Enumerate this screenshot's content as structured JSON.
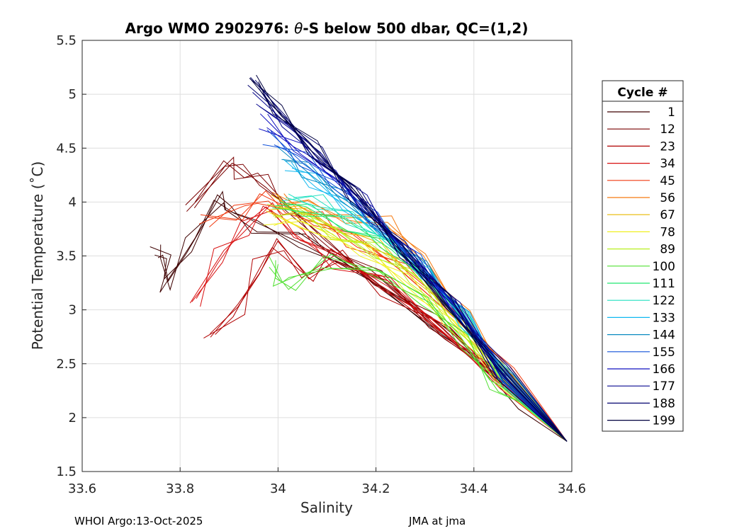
{
  "chart_data": {
    "type": "line",
    "title": {
      "prefix": "Argo WMO 2902976: ",
      "theta": "θ",
      "suffix": "-S below 500 dbar,  QC=(1,2)"
    },
    "xlabel": "Salinity",
    "ylabel": "Potential Temperature (˚C)",
    "xlim": [
      33.6,
      34.6
    ],
    "ylim": [
      1.5,
      5.5
    ],
    "xticks": [
      "33.6",
      "33.8",
      "34",
      "34.2",
      "34.4",
      "34.6"
    ],
    "yticks": [
      "1.5",
      "2",
      "2.5",
      "3",
      "3.5",
      "4",
      "4.5",
      "5",
      "5.5"
    ],
    "grid": true,
    "legend": {
      "title": "Cycle #",
      "placement": "outside-right",
      "entries": [
        {
          "label": "1",
          "color": "#3d0000"
        },
        {
          "label": "12",
          "color": "#7a0000"
        },
        {
          "label": "23",
          "color": "#b00000"
        },
        {
          "label": "34",
          "color": "#d81010"
        },
        {
          "label": "45",
          "color": "#f03a10"
        },
        {
          "label": "56",
          "color": "#f57a10"
        },
        {
          "label": "67",
          "color": "#e8b800"
        },
        {
          "label": "78",
          "color": "#f0f020"
        },
        {
          "label": "89",
          "color": "#b8f020"
        },
        {
          "label": "100",
          "color": "#50e030"
        },
        {
          "label": "111",
          "color": "#20e870"
        },
        {
          "label": "122",
          "color": "#20e0c0"
        },
        {
          "label": "133",
          "color": "#10b8f0"
        },
        {
          "label": "144",
          "color": "#0a8ac0"
        },
        {
          "label": "155",
          "color": "#1050d8"
        },
        {
          "label": "166",
          "color": "#1010c0"
        },
        {
          "label": "177",
          "color": "#080890"
        },
        {
          "label": "188",
          "color": "#050570"
        },
        {
          "label": "199",
          "color": "#000040"
        }
      ]
    },
    "series": [
      {
        "name": "1",
        "x": [
          33.75,
          33.77,
          33.77,
          33.82,
          33.88,
          33.9,
          33.95,
          34.05,
          34.2,
          34.35,
          34.5,
          34.59
        ],
        "y": [
          3.54,
          3.5,
          3.22,
          3.6,
          4.05,
          3.92,
          3.78,
          3.65,
          3.25,
          2.75,
          2.15,
          1.78
        ]
      },
      {
        "name": "12",
        "x": [
          33.82,
          33.9,
          33.92,
          33.97,
          34.02,
          34.1,
          34.2,
          34.32,
          34.46,
          34.59
        ],
        "y": [
          3.95,
          4.38,
          4.28,
          4.2,
          3.95,
          3.6,
          3.3,
          2.9,
          2.35,
          1.78
        ]
      },
      {
        "name": "23",
        "x": [
          33.86,
          33.92,
          33.96,
          34.0,
          34.06,
          34.12,
          34.22,
          34.34,
          34.47,
          34.59
        ],
        "y": [
          2.75,
          3.0,
          3.4,
          3.6,
          3.3,
          3.5,
          3.2,
          2.8,
          2.3,
          1.78
        ]
      },
      {
        "name": "34",
        "x": [
          33.83,
          33.88,
          33.93,
          33.98,
          34.04,
          34.12,
          34.22,
          34.33,
          34.46,
          34.59
        ],
        "y": [
          3.06,
          3.5,
          3.75,
          3.95,
          3.7,
          3.45,
          3.25,
          2.85,
          2.3,
          1.78
        ]
      },
      {
        "name": "45",
        "x": [
          33.85,
          33.92,
          33.97,
          34.02,
          34.08,
          34.15,
          34.25,
          34.36,
          34.48,
          34.59
        ],
        "y": [
          3.82,
          3.9,
          4.05,
          3.9,
          3.85,
          3.65,
          3.4,
          2.95,
          2.4,
          1.78
        ]
      },
      {
        "name": "56",
        "x": [
          34.0,
          34.06,
          34.14,
          34.22,
          34.3,
          34.38,
          34.47,
          34.59
        ],
        "y": [
          4.02,
          3.95,
          3.85,
          3.82,
          3.45,
          2.95,
          2.4,
          1.78
        ]
      },
      {
        "name": "67",
        "x": [
          33.99,
          34.05,
          34.12,
          34.2,
          34.28,
          34.36,
          34.46,
          34.59
        ],
        "y": [
          4.0,
          3.9,
          3.75,
          3.6,
          3.35,
          2.95,
          2.4,
          1.78
        ]
      },
      {
        "name": "78",
        "x": [
          33.98,
          34.04,
          34.1,
          34.18,
          34.26,
          34.35,
          34.46,
          34.59
        ],
        "y": [
          3.85,
          3.8,
          3.7,
          3.55,
          3.25,
          2.9,
          2.35,
          1.78
        ]
      },
      {
        "name": "89",
        "x": [
          33.99,
          34.05,
          34.12,
          34.2,
          34.28,
          34.36,
          34.46,
          34.59
        ],
        "y": [
          3.92,
          3.9,
          3.7,
          3.55,
          3.3,
          2.9,
          2.35,
          1.78
        ]
      },
      {
        "name": "100",
        "x": [
          33.99,
          34.0,
          34.03,
          34.1,
          34.2,
          34.3,
          34.38,
          34.44,
          34.52,
          34.59
        ],
        "y": [
          3.45,
          3.25,
          3.25,
          3.45,
          3.35,
          3.1,
          2.7,
          2.3,
          2.1,
          1.78
        ]
      },
      {
        "name": "111",
        "x": [
          34.0,
          34.06,
          34.14,
          34.22,
          34.3,
          34.38,
          34.47,
          34.59
        ],
        "y": [
          3.98,
          3.92,
          3.8,
          3.62,
          3.3,
          2.9,
          2.35,
          1.78
        ]
      },
      {
        "name": "122",
        "x": [
          34.02,
          34.08,
          34.15,
          34.22,
          34.3,
          34.38,
          34.47,
          34.59
        ],
        "y": [
          4.05,
          4.0,
          3.85,
          3.65,
          3.35,
          2.92,
          2.35,
          1.78
        ]
      },
      {
        "name": "133",
        "x": [
          34.02,
          34.07,
          34.14,
          34.22,
          34.3,
          34.38,
          34.47,
          34.59
        ],
        "y": [
          4.35,
          4.2,
          3.95,
          3.7,
          3.35,
          2.92,
          2.35,
          1.78
        ]
      },
      {
        "name": "144",
        "x": [
          34.01,
          34.06,
          34.13,
          34.21,
          34.3,
          34.38,
          34.47,
          34.59
        ],
        "y": [
          4.45,
          4.3,
          4.05,
          3.75,
          3.38,
          2.92,
          2.35,
          1.78
        ]
      },
      {
        "name": "155",
        "x": [
          33.98,
          34.05,
          34.12,
          34.2,
          34.28,
          34.37,
          34.47,
          34.59
        ],
        "y": [
          4.6,
          4.4,
          4.15,
          3.85,
          3.45,
          2.98,
          2.38,
          1.78
        ]
      },
      {
        "name": "166",
        "x": [
          33.97,
          34.04,
          34.11,
          34.19,
          34.27,
          34.36,
          34.46,
          34.59
        ],
        "y": [
          4.75,
          4.5,
          4.25,
          3.9,
          3.5,
          3.02,
          2.4,
          1.78
        ]
      },
      {
        "name": "177",
        "x": [
          33.96,
          34.02,
          34.09,
          34.17,
          34.26,
          34.36,
          34.46,
          34.59
        ],
        "y": [
          4.95,
          4.7,
          4.4,
          4.0,
          3.55,
          3.05,
          2.42,
          1.78
        ]
      },
      {
        "name": "188",
        "x": [
          33.95,
          34.01,
          34.08,
          34.16,
          34.25,
          34.35,
          34.46,
          34.59
        ],
        "y": [
          5.1,
          4.8,
          4.45,
          4.05,
          3.6,
          3.05,
          2.42,
          1.78
        ]
      },
      {
        "name": "199",
        "x": [
          33.95,
          34.0,
          34.07,
          34.15,
          34.24,
          34.34,
          34.45,
          34.59
        ],
        "y": [
          5.14,
          4.85,
          4.5,
          4.1,
          3.62,
          3.08,
          2.45,
          1.78
        ]
      }
    ]
  },
  "footer": {
    "left": "WHOI Argo:13-Oct-2025",
    "right": "JMA at jma"
  }
}
